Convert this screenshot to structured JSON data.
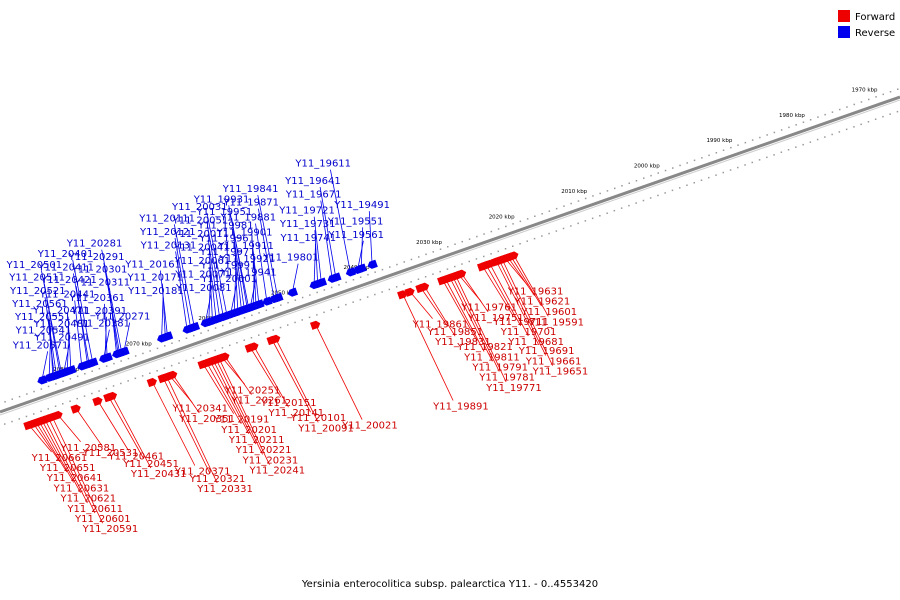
{
  "caption": "Yersinia enterocolitica subsp. palearctica Y11. - 0..4553420",
  "legend": [
    {
      "label": "Forward",
      "color": "#ee0000"
    },
    {
      "label": "Reverse",
      "color": "#0000ee"
    }
  ],
  "colors": {
    "forward": "#ee0000",
    "reverse": "#0000ee",
    "axis": "#888888"
  },
  "scale": {
    "unit": "kbp",
    "ticks": [
      "1970 kbp",
      "1980 kbp",
      "1990 kbp",
      "2000 kbp",
      "2010 kbp",
      "2020 kbp",
      "2030 kbp",
      "2040 kbp",
      "2050 kbp",
      "2060 kbp",
      "2070 kbp",
      "2080 kbp"
    ]
  },
  "forward_genes": [
    {
      "id": "Y11_20661",
      "pos": 2088.0
    },
    {
      "id": "Y11_20651",
      "pos": 2087.4
    },
    {
      "id": "Y11_20641",
      "pos": 2087.0
    },
    {
      "id": "Y11_20631",
      "pos": 2086.6
    },
    {
      "id": "Y11_20621",
      "pos": 2086.2
    },
    {
      "id": "Y11_20611",
      "pos": 2085.8
    },
    {
      "id": "Y11_20601",
      "pos": 2085.3
    },
    {
      "id": "Y11_20591",
      "pos": 2084.8
    },
    {
      "id": "Y11_20581",
      "pos": 2084.0
    },
    {
      "id": "Y11_20531",
      "pos": 2081.5
    },
    {
      "id": "Y11_20461",
      "pos": 2078.5
    },
    {
      "id": "Y11_20451",
      "pos": 2077.0
    },
    {
      "id": "Y11_20431",
      "pos": 2076.5
    },
    {
      "id": "Y11_20371",
      "pos": 2071.0
    },
    {
      "id": "Y11_20321",
      "pos": 2069.5
    },
    {
      "id": "Y11_20331",
      "pos": 2069.0
    },
    {
      "id": "Y11_20341",
      "pos": 2068.6
    },
    {
      "id": "Y11_20351",
      "pos": 2068.2
    },
    {
      "id": "Y11_20191",
      "pos": 2064.0
    },
    {
      "id": "Y11_20201",
      "pos": 2063.5
    },
    {
      "id": "Y11_20211",
      "pos": 2063.0
    },
    {
      "id": "Y11_20221",
      "pos": 2062.6
    },
    {
      "id": "Y11_20231",
      "pos": 2062.2
    },
    {
      "id": "Y11_20241",
      "pos": 2061.8
    },
    {
      "id": "Y11_20251",
      "pos": 2061.4
    },
    {
      "id": "Y11_20261",
      "pos": 2061.0
    },
    {
      "id": "Y11_20151",
      "pos": 2057.5
    },
    {
      "id": "Y11_20141",
      "pos": 2057.0
    },
    {
      "id": "Y11_20101",
      "pos": 2054.5
    },
    {
      "id": "Y11_20091",
      "pos": 2054.0
    },
    {
      "id": "Y11_20021",
      "pos": 2048.5
    },
    {
      "id": "Y11_19891",
      "pos": 2036.5
    },
    {
      "id": "Y11_19861",
      "pos": 2035.5
    },
    {
      "id": "Y11_19851",
      "pos": 2034.0
    },
    {
      "id": "Y11_19831",
      "pos": 2033.5
    },
    {
      "id": "Y11_19821",
      "pos": 2031.0
    },
    {
      "id": "Y11_19811",
      "pos": 2030.6
    },
    {
      "id": "Y11_19791",
      "pos": 2030.0
    },
    {
      "id": "Y11_19781",
      "pos": 2029.6
    },
    {
      "id": "Y11_19771",
      "pos": 2029.2
    },
    {
      "id": "Y11_19761",
      "pos": 2028.8
    },
    {
      "id": "Y11_19751",
      "pos": 2028.4
    },
    {
      "id": "Y11_19711",
      "pos": 2025.5
    },
    {
      "id": "Y11_19701",
      "pos": 2025.0
    },
    {
      "id": "Y11_19691",
      "pos": 2023.6
    },
    {
      "id": "Y11_19681",
      "pos": 2024.5
    },
    {
      "id": "Y11_19661",
      "pos": 2023.2
    },
    {
      "id": "Y11_19651",
      "pos": 2022.8
    },
    {
      "id": "Y11_19631",
      "pos": 2022.4
    },
    {
      "id": "Y11_19621",
      "pos": 2022.0
    },
    {
      "id": "Y11_19601",
      "pos": 2021.6
    },
    {
      "id": "Y11_19591",
      "pos": 2021.2
    }
  ],
  "reverse_genes": [
    {
      "id": "Y11_20571",
      "pos": 2084.5
    },
    {
      "id": "Y11_20541",
      "pos": 2083.5
    },
    {
      "id": "Y11_20521",
      "pos": 2082.5
    },
    {
      "id": "Y11_20551",
      "pos": 2083.0
    },
    {
      "id": "Y11_20561",
      "pos": 2082.8
    },
    {
      "id": "Y11_20481",
      "pos": 2081.0
    },
    {
      "id": "Y11_20471",
      "pos": 2080.5
    },
    {
      "id": "Y11_20491",
      "pos": 2081.5
    },
    {
      "id": "Y11_20501",
      "pos": 2081.8
    },
    {
      "id": "Y11_20511",
      "pos": 2082.0
    },
    {
      "id": "Y11_20441",
      "pos": 2079.0
    },
    {
      "id": "Y11_20411",
      "pos": 2078.0
    },
    {
      "id": "Y11_20401",
      "pos": 2077.5
    },
    {
      "id": "Y11_20421",
      "pos": 2078.2
    },
    {
      "id": "Y11_20381",
      "pos": 2076.0
    },
    {
      "id": "Y11_20391",
      "pos": 2075.8
    },
    {
      "id": "Y11_20361",
      "pos": 2075.5
    },
    {
      "id": "Y11_20301",
      "pos": 2074.0
    },
    {
      "id": "Y11_20291",
      "pos": 2073.8
    },
    {
      "id": "Y11_20281",
      "pos": 2073.5
    },
    {
      "id": "Y11_20271",
      "pos": 2073.2
    },
    {
      "id": "Y11_20311",
      "pos": 2074.2
    },
    {
      "id": "Y11_20181",
      "pos": 2068.0
    },
    {
      "id": "Y11_20171",
      "pos": 2067.5
    },
    {
      "id": "Y11_20161",
      "pos": 2067.2
    },
    {
      "id": "Y11_20131",
      "pos": 2064.5
    },
    {
      "id": "Y11_20121",
      "pos": 2064.0
    },
    {
      "id": "Y11_20111",
      "pos": 2063.5
    },
    {
      "id": "Y11_20081",
      "pos": 2062.0
    },
    {
      "id": "Y11_20071",
      "pos": 2061.5
    },
    {
      "id": "Y11_20061",
      "pos": 2061.0
    },
    {
      "id": "Y11_20041",
      "pos": 2060.5
    },
    {
      "id": "Y11_20011",
      "pos": 2060.0
    },
    {
      "id": "Y11_20051",
      "pos": 2059.5
    },
    {
      "id": "Y11_20031",
      "pos": 2059.0
    },
    {
      "id": "Y11_20001",
      "pos": 2058.5
    },
    {
      "id": "Y11_19991",
      "pos": 2058.0
    },
    {
      "id": "Y11_19971",
      "pos": 2057.5
    },
    {
      "id": "Y11_19961",
      "pos": 2057.0
    },
    {
      "id": "Y11_19981",
      "pos": 2056.6
    },
    {
      "id": "Y11_19951",
      "pos": 2056.2
    },
    {
      "id": "Y11_19941",
      "pos": 2055.8
    },
    {
      "id": "Y11_19931",
      "pos": 2056.0
    },
    {
      "id": "Y11_19921",
      "pos": 2055.4
    },
    {
      "id": "Y11_19911",
      "pos": 2055.0
    },
    {
      "id": "Y11_19901",
      "pos": 2054.6
    },
    {
      "id": "Y11_19881",
      "pos": 2053.5
    },
    {
      "id": "Y11_19871",
      "pos": 2052.5
    },
    {
      "id": "Y11_19841",
      "pos": 2052.0
    },
    {
      "id": "Y11_19801",
      "pos": 2050.0
    },
    {
      "id": "Y11_19741",
      "pos": 2047.0
    },
    {
      "id": "Y11_19731",
      "pos": 2046.5
    },
    {
      "id": "Y11_19721",
      "pos": 2046.0
    },
    {
      "id": "Y11_19671",
      "pos": 2044.5
    },
    {
      "id": "Y11_19641",
      "pos": 2044.0
    },
    {
      "id": "Y11_19611",
      "pos": 2042.0
    },
    {
      "id": "Y11_19561",
      "pos": 2041.0
    },
    {
      "id": "Y11_19551",
      "pos": 2040.5
    },
    {
      "id": "Y11_19491",
      "pos": 2039.0
    }
  ]
}
